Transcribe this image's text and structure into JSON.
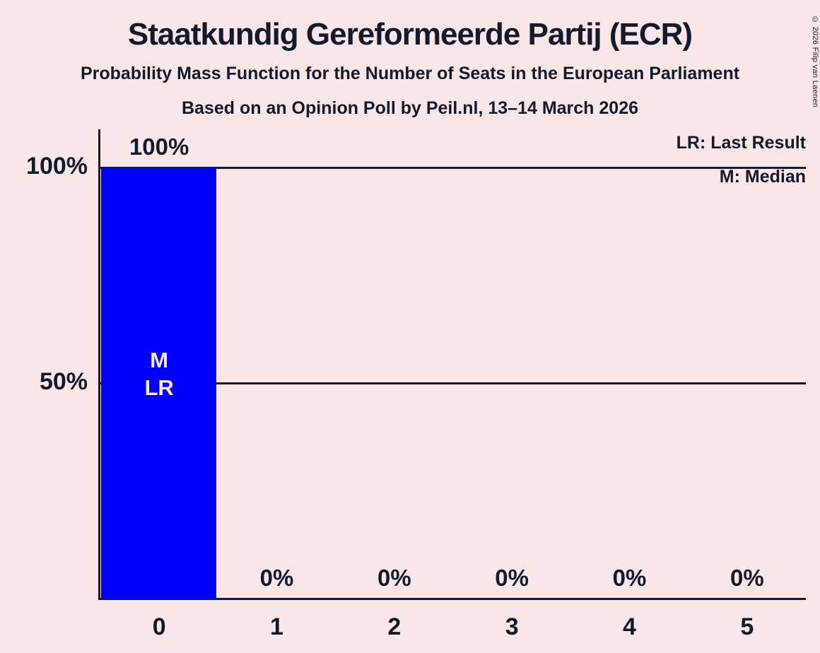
{
  "title": "Staatkundig Gereformeerde Partij (ECR)",
  "subtitle": "Probability Mass Function for the Number of Seats in the European Parliament",
  "poll_line": "Based on an Opinion Poll by Peil.nl, 13–14 March 2026",
  "copyright": "© 2026 Filip van Laenen",
  "legend": {
    "lr_label": "LR: Last Result",
    "m_label": "M: Median"
  },
  "colors": {
    "background": "#FAE5E7",
    "ink": "#121A2E",
    "bar": "#0000FF",
    "bar_annotation_text": "#FAE5E7"
  },
  "chart_data": {
    "type": "bar",
    "title": "Staatkundig Gereformeerde Partij (ECR)",
    "categories": [
      "0",
      "1",
      "2",
      "3",
      "4",
      "5"
    ],
    "values": [
      100,
      0,
      0,
      0,
      0,
      0
    ],
    "value_labels": [
      "100%",
      "0%",
      "0%",
      "0%",
      "0%",
      "0%"
    ],
    "bar_annotations": [
      {
        "category": "0",
        "lines": [
          "M",
          "LR"
        ]
      }
    ],
    "median_seats": "0",
    "last_result_seats": "0",
    "xlabel": "",
    "ylabel": "",
    "ylim": [
      0,
      100
    ],
    "y_solid_gridlines": [
      100,
      50
    ],
    "y_axis_labels": [
      "100%",
      "50%"
    ],
    "y_dotted_gridlines": [
      90,
      80,
      70,
      60,
      40,
      30,
      20,
      10
    ],
    "grid": "horizontal",
    "legend_entries": [
      "LR: Last Result",
      "M: Median"
    ],
    "legend_position": "top-right"
  }
}
